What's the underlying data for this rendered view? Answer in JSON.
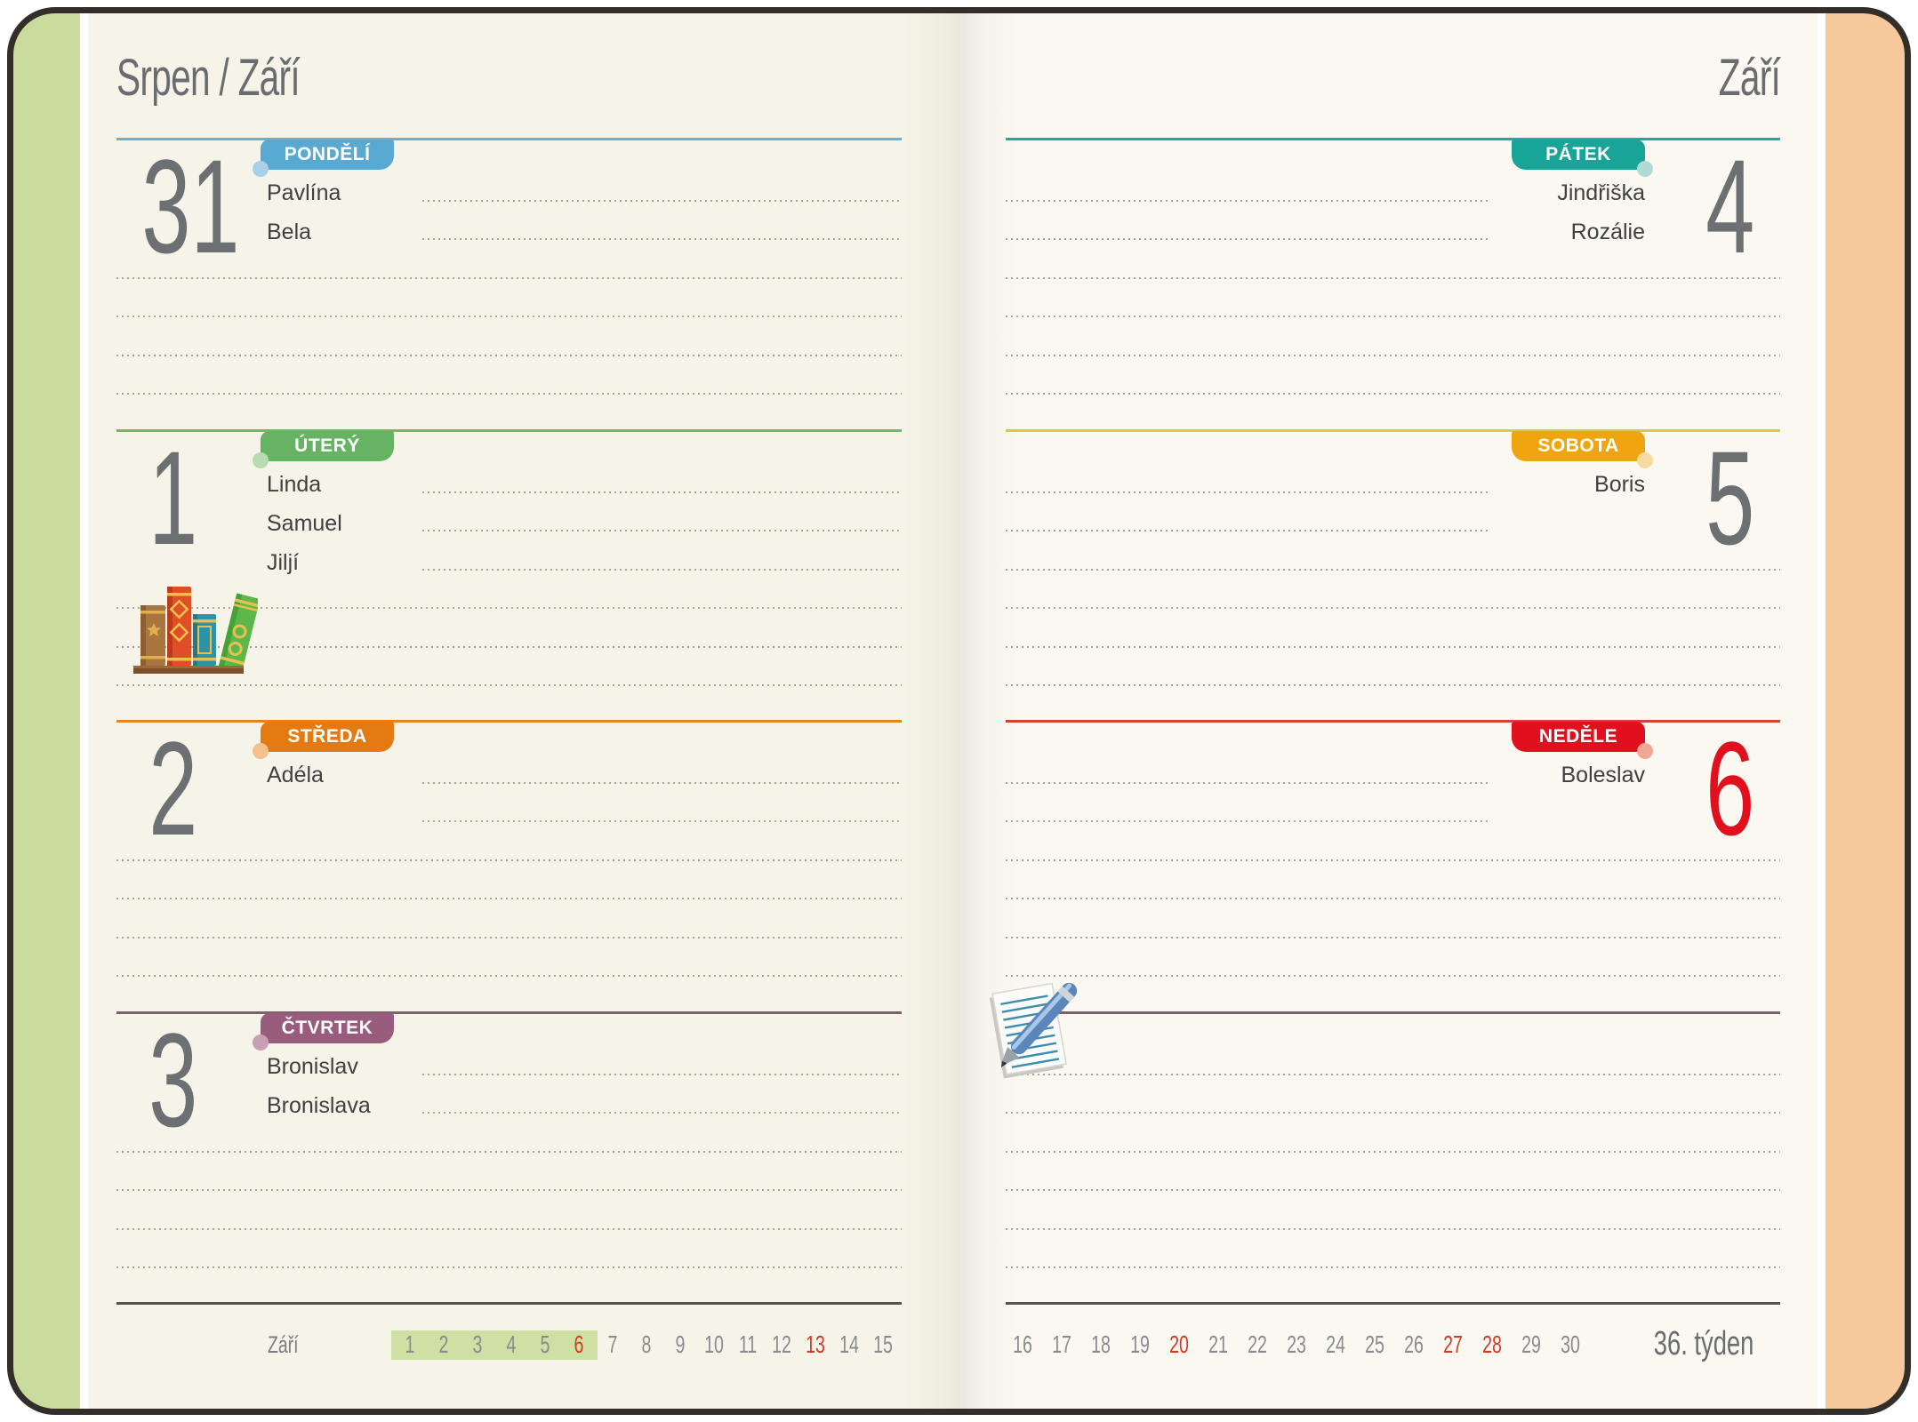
{
  "page": {
    "left_title": "Srpen / Září",
    "right_title": "Září",
    "week_label": "36. týden"
  },
  "days": [
    {
      "date": "31",
      "label": "PONDĚLÍ",
      "names": [
        "Pavlína",
        "Bela"
      ],
      "color": "#58aad2",
      "line_color": "#64b0d6",
      "dot_color": "#aacfe6",
      "number_color": "#6d7073"
    },
    {
      "date": "1",
      "label": "ÚTERÝ",
      "names": [
        "Linda",
        "Samuel",
        "Jiljí"
      ],
      "color": "#66b463",
      "line_color": "#6fb86c",
      "dot_color": "#b7dcb4",
      "number_color": "#6d7073"
    },
    {
      "date": "2",
      "label": "STŘEDA",
      "names": [
        "Adéla"
      ],
      "color": "#e67a12",
      "line_color": "#e8821c",
      "dot_color": "#f4c08d",
      "number_color": "#6d7073"
    },
    {
      "date": "3",
      "label": "ČTVRTEK",
      "names": [
        "Bronislav",
        "Bronislava"
      ],
      "color": "#9a5c7d",
      "line_color": "#7d5f6e",
      "dot_color": "#c8a0b3",
      "number_color": "#6d7073"
    },
    {
      "date": "4",
      "label": "PÁTEK",
      "names": [
        "Jindřiška",
        "Rozálie"
      ],
      "color": "#18a497",
      "line_color": "#25a89c",
      "dot_color": "#b2dad4",
      "number_color": "#6d7073"
    },
    {
      "date": "5",
      "label": "SOBOTA",
      "names": [
        "Boris"
      ],
      "color": "#efa50f",
      "line_color": "#e6c24a",
      "dot_color": "#f7d9a2",
      "number_color": "#6d7073"
    },
    {
      "date": "6",
      "label": "NEDĚLE",
      "names": [
        "Boleslav"
      ],
      "color": "#e0101f",
      "line_color": "#d93f37",
      "dot_color": "#f0a794",
      "number_color": "#e0101f"
    }
  ],
  "notes_line_color": "#7d5f6e",
  "calendar": {
    "month_label": "Září",
    "left_days": {
      "start": 1,
      "end": 15
    },
    "right_days": {
      "start": 16,
      "end": 30
    },
    "highlight_days": [
      1,
      2,
      3,
      4,
      5,
      6
    ],
    "red_days": [
      6,
      13,
      20,
      27,
      28
    ],
    "highlight_color": "#cfe0a4",
    "red_color": "#d03a28",
    "number_color": "#8a8b8e"
  },
  "icons": {
    "bookshelf": "bookshelf-with-four-books",
    "notepad_pen": "notepad-with-pen"
  },
  "theme": {
    "cover_border": "#332e2b",
    "left_strip": "#cadc9d",
    "right_strip": "#f6c99c",
    "left_page_bg": "#f6f4e8",
    "right_page_bg": "#faf8f1",
    "header_color": "#6a6d70",
    "name_color": "#404040",
    "bottom_line_color": "#56534f",
    "cal_highlight": "#cfe0a4",
    "cal_red": "#d03a28",
    "cal_num": "#8a8b8e"
  }
}
